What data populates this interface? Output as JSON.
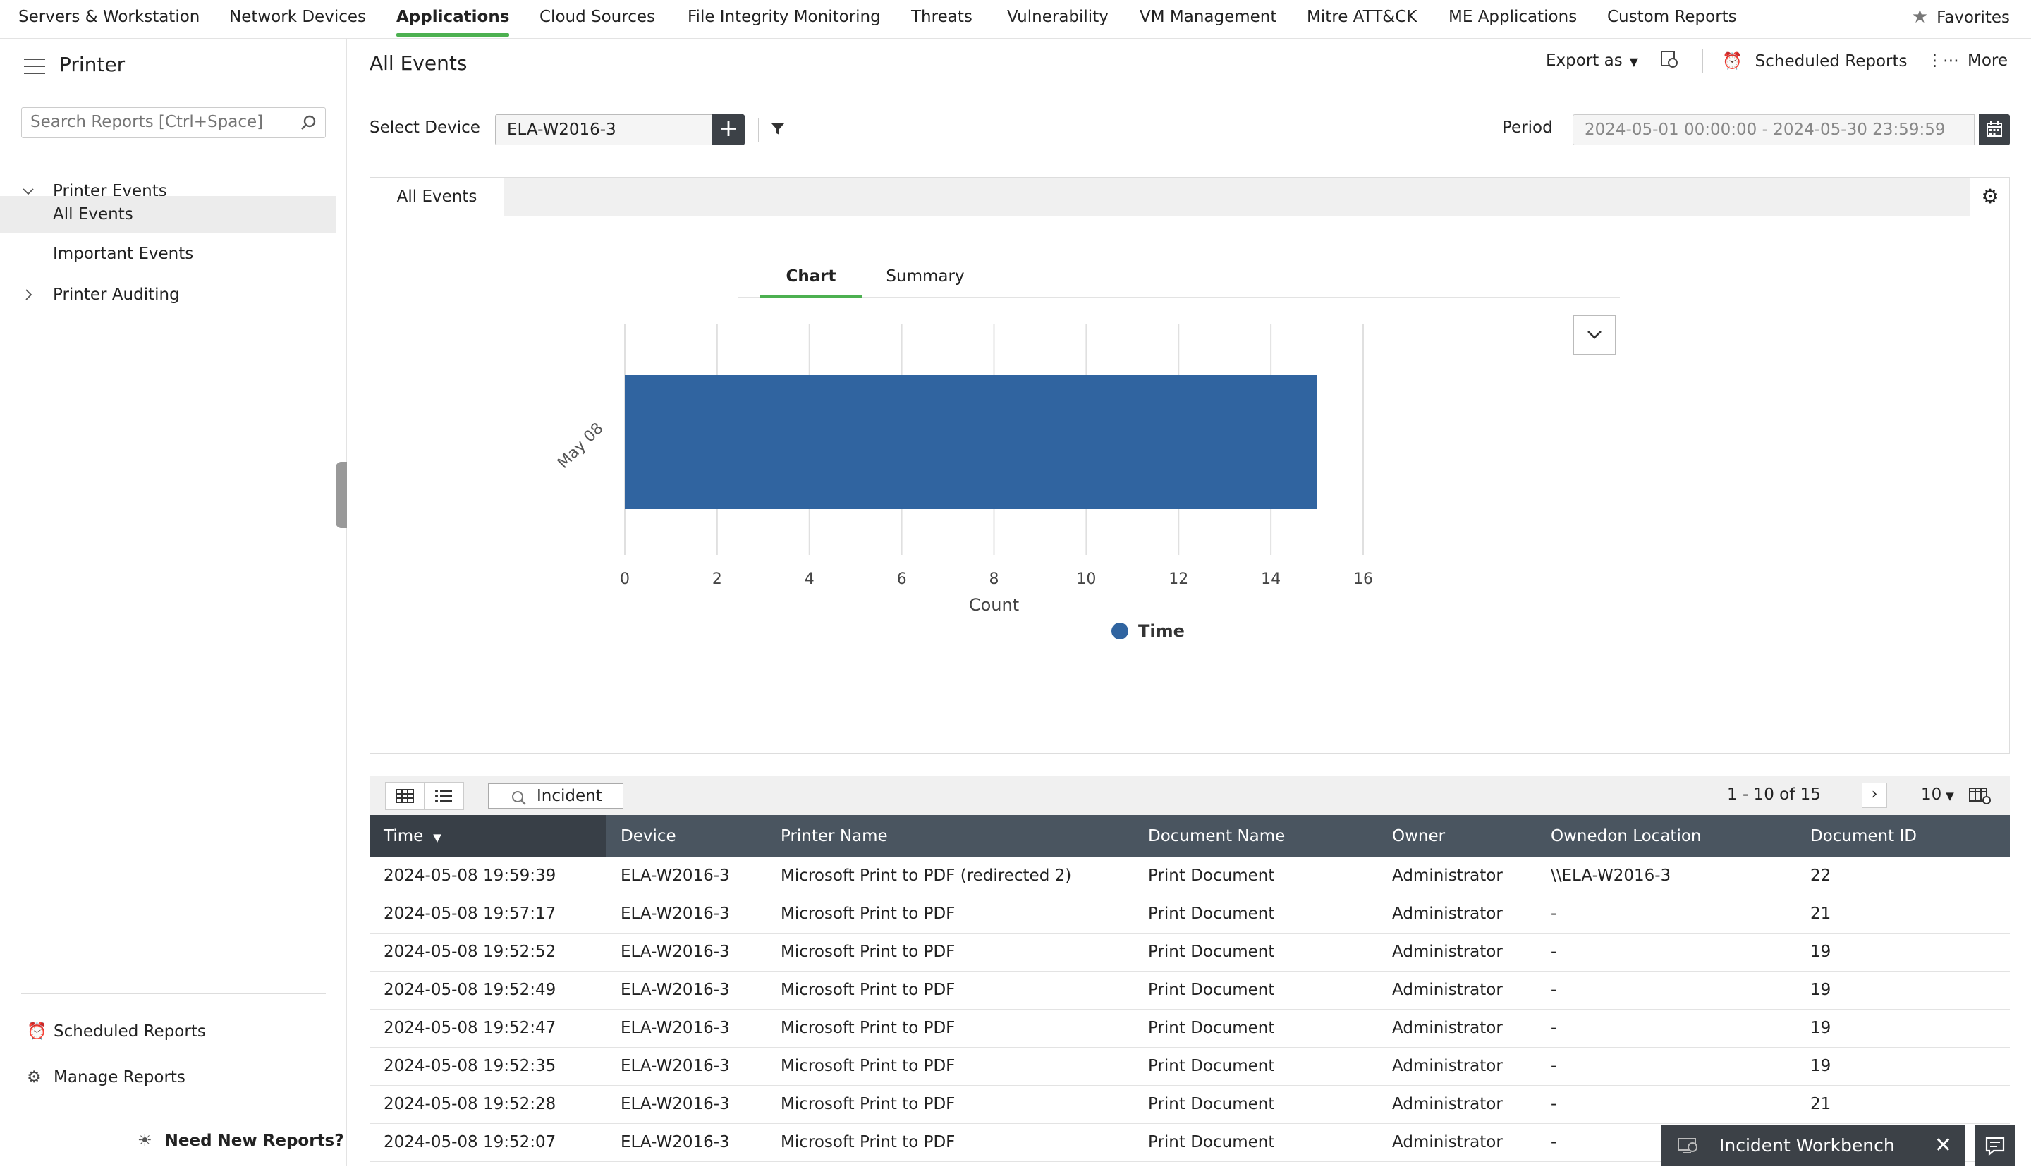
{
  "topnav": {
    "items": [
      "Servers & Workstation",
      "Network Devices",
      "Applications",
      "Cloud Sources",
      "File Integrity Monitoring",
      "Threats",
      "Vulnerability",
      "VM Management",
      "Mitre ATT&CK",
      "ME Applications",
      "Custom Reports"
    ],
    "favorites": "Favorites"
  },
  "sidebar": {
    "title": "Printer",
    "search_placeholder": "Search Reports [Ctrl+Space]",
    "group": "Printer Events",
    "items": [
      "All Events",
      "Important Events"
    ],
    "group2": "Printer Auditing",
    "scheduled": "Scheduled Reports",
    "manage": "Manage Reports",
    "need": "Need New Reports?"
  },
  "main": {
    "title": "All Events",
    "export": "Export as",
    "scheduled": "Scheduled Reports",
    "more": "More",
    "select_device_label": "Select Device",
    "device": "ELA-W2016-3",
    "period_label": "Period",
    "period": "2024-05-01 00:00:00 - 2024-05-30 23:59:59",
    "panel_tab": "All Events",
    "chart_tab": "Chart",
    "summary_tab": "Summary"
  },
  "chart_data": {
    "type": "bar",
    "orientation": "horizontal",
    "categories": [
      "May 08"
    ],
    "series": [
      {
        "name": "Time",
        "values": [
          15
        ]
      }
    ],
    "xlabel": "Count",
    "xlim": [
      0,
      16
    ],
    "xticks": [
      0,
      2,
      4,
      6,
      8,
      10,
      12,
      14,
      16
    ],
    "grid": true,
    "legend": "bottom",
    "color": "#3064a0"
  },
  "table": {
    "incident": "Incident",
    "pagination": "1 - 10 of 15",
    "page_size": "10",
    "columns": [
      "Time",
      "Device",
      "Printer Name",
      "Document Name",
      "Owner",
      "Ownedon Location",
      "Document ID"
    ],
    "rows": [
      [
        "2024-05-08 19:59:39",
        "ELA-W2016-3",
        "Microsoft Print to PDF (redirected 2)",
        "Print Document",
        "Administrator",
        "\\\\ELA-W2016-3",
        "22"
      ],
      [
        "2024-05-08 19:57:17",
        "ELA-W2016-3",
        "Microsoft Print to PDF",
        "Print Document",
        "Administrator",
        "-",
        "21"
      ],
      [
        "2024-05-08 19:52:52",
        "ELA-W2016-3",
        "Microsoft Print to PDF",
        "Print Document",
        "Administrator",
        "-",
        "19"
      ],
      [
        "2024-05-08 19:52:49",
        "ELA-W2016-3",
        "Microsoft Print to PDF",
        "Print Document",
        "Administrator",
        "-",
        "19"
      ],
      [
        "2024-05-08 19:52:47",
        "ELA-W2016-3",
        "Microsoft Print to PDF",
        "Print Document",
        "Administrator",
        "-",
        "19"
      ],
      [
        "2024-05-08 19:52:35",
        "ELA-W2016-3",
        "Microsoft Print to PDF",
        "Print Document",
        "Administrator",
        "-",
        "19"
      ],
      [
        "2024-05-08 19:52:28",
        "ELA-W2016-3",
        "Microsoft Print to PDF",
        "Print Document",
        "Administrator",
        "-",
        "21"
      ],
      [
        "2024-05-08 19:52:07",
        "ELA-W2016-3",
        "Microsoft Print to PDF",
        "Print Document",
        "Administrator",
        "-",
        ""
      ]
    ]
  },
  "workbench": "Incident Workbench"
}
